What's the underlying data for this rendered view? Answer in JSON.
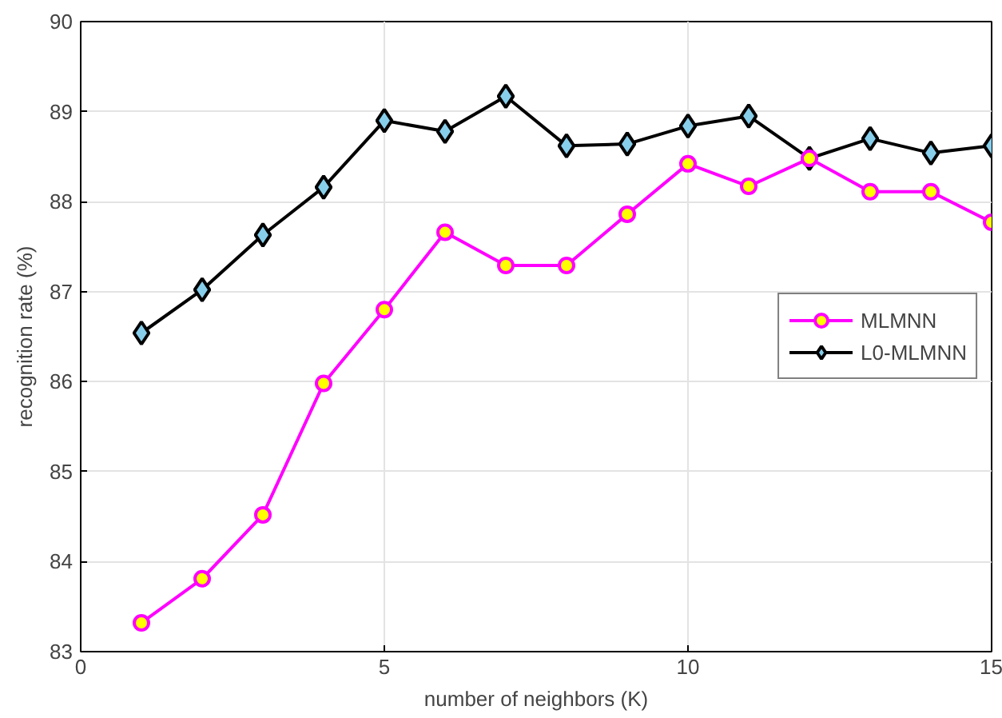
{
  "chart_data": {
    "type": "line",
    "xlabel": "number of neighbors (K)",
    "ylabel": "recognition rate (%)",
    "x": [
      1,
      2,
      3,
      4,
      5,
      6,
      7,
      8,
      9,
      10,
      11,
      12,
      13,
      14,
      15
    ],
    "series": [
      {
        "name": "MLMNN",
        "color": "#ff00ff",
        "marker": "circle",
        "values": [
          83.32,
          83.81,
          84.52,
          85.98,
          86.8,
          87.66,
          87.29,
          87.29,
          87.86,
          88.42,
          88.17,
          88.48,
          88.11,
          88.11,
          87.77
        ]
      },
      {
        "name": "L0-MLMNN",
        "color": "#000000",
        "marker": "diamond",
        "values": [
          86.54,
          87.02,
          87.63,
          88.16,
          88.9,
          88.78,
          89.17,
          88.62,
          88.64,
          88.84,
          88.95,
          88.48,
          88.7,
          88.54,
          88.62
        ]
      }
    ],
    "xlim": [
      0,
      15
    ],
    "xticks": [
      0,
      5,
      10,
      15
    ],
    "ylim": [
      83,
      90
    ],
    "yticks": [
      83,
      84,
      85,
      86,
      87,
      88,
      89,
      90
    ],
    "grid": true,
    "legend": "right",
    "line_style": "solid"
  }
}
